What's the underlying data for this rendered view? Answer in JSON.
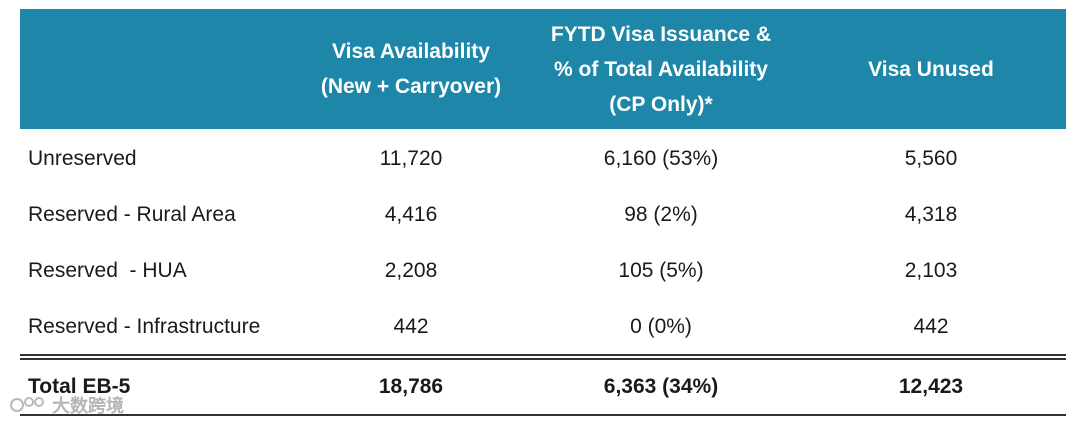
{
  "header": {
    "col_a": [
      "Visa Availability",
      "(New + Carryover)"
    ],
    "col_b": [
      "FYTD Visa Issuance &",
      "% of Total Availability",
      "(CP Only)*"
    ],
    "col_c": [
      "Visa Unused"
    ]
  },
  "rows": [
    {
      "label": "Unreserved",
      "a": "11,720",
      "b": "6,160 (53%)",
      "c": "5,560"
    },
    {
      "label": "Reserved - Rural Area",
      "a": "4,416",
      "b": "98 (2%)",
      "c": "4,318"
    },
    {
      "label": "Reserved  - HUA",
      "a": "2,208",
      "b": "105 (5%)",
      "c": "2,103"
    },
    {
      "label": "Reserved - Infrastructure",
      "a": "442",
      "b": "0 (0%)",
      "c": "442"
    }
  ],
  "total": {
    "label": "Total EB-5",
    "a": "18,786",
    "b": "6,363 (34%)",
    "c": "12,423"
  },
  "watermark": {
    "text": "大数跨境"
  },
  "colors": {
    "header_bg": "#1e86a8",
    "header_text": "#ffffff"
  }
}
